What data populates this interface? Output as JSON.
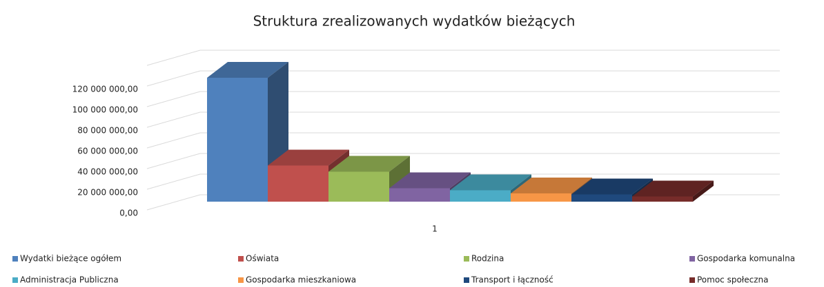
{
  "chart_data": {
    "type": "bar3d",
    "title": "Struktura zrealizowanych wydatków bieżących",
    "categories": [
      "1"
    ],
    "series": [
      {
        "name": "Wydatki bieżące ogółem",
        "color": "#4f81bd",
        "values": [
          120000000
        ]
      },
      {
        "name": "Oświata",
        "color": "#c0504d",
        "values": [
          35000000
        ]
      },
      {
        "name": "Rodzina",
        "color": "#9bbb59",
        "values": [
          29000000
        ]
      },
      {
        "name": "Gospodarka komunalna",
        "color": "#8064a2",
        "values": [
          13000000
        ]
      },
      {
        "name": "Administracja Publiczna",
        "color": "#4bacc6",
        "values": [
          11000000
        ]
      },
      {
        "name": "Gospodarka mieszkaniowa",
        "color": "#f79646",
        "values": [
          8000000
        ]
      },
      {
        "name": "Transport i łączność",
        "color": "#1f497d",
        "values": [
          7000000
        ]
      },
      {
        "name": "Pomoc społeczna",
        "color": "#772c2a",
        "values": [
          5000000
        ]
      }
    ],
    "ylim": [
      0,
      140000000
    ],
    "yticks": [
      {
        "value": 0,
        "label": "0,00"
      },
      {
        "value": 20000000,
        "label": "20 000 000,00"
      },
      {
        "value": 40000000,
        "label": "40 000 000,00"
      },
      {
        "value": 60000000,
        "label": "60 000 000,00"
      },
      {
        "value": 80000000,
        "label": "80 000 000,00"
      },
      {
        "value": 100000000,
        "label": "100 000 000,00"
      },
      {
        "value": 120000000,
        "label": "120 000 000,00"
      }
    ],
    "grid": true,
    "legend": "bottom"
  }
}
